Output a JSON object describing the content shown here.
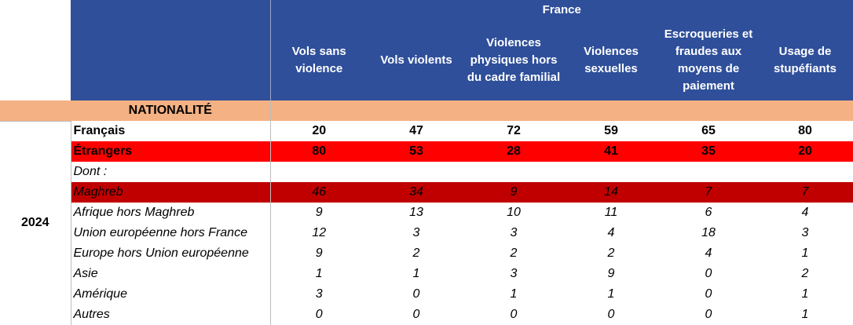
{
  "header": {
    "group_title": "France",
    "columns": [
      "Vols sans violence",
      "Vols violents",
      "Violences physiques hors du cadre familial",
      "Violences sexuelles",
      "Escroqueries et fraudes aux moyens de paiement",
      "Usage de stupéfiants"
    ]
  },
  "section_label": "NATIONALITÉ",
  "year": "2024",
  "rows": [
    {
      "label": "Français",
      "values": [
        "20",
        "47",
        "72",
        "59",
        "65",
        "80"
      ],
      "style": "bold"
    },
    {
      "label": "Étrangers",
      "values": [
        "80",
        "53",
        "28",
        "41",
        "35",
        "20"
      ],
      "style": "bold red"
    },
    {
      "label": "Dont :",
      "values": [
        "",
        "",
        "",
        "",
        "",
        ""
      ],
      "style": "ital"
    },
    {
      "label": "Maghreb",
      "values": [
        "46",
        "34",
        "9",
        "14",
        "7",
        "7"
      ],
      "style": "ital dark"
    },
    {
      "label": "Afrique hors Maghreb",
      "values": [
        "9",
        "13",
        "10",
        "11",
        "6",
        "4"
      ],
      "style": "ital"
    },
    {
      "label": "Union européenne hors France",
      "values": [
        "12",
        "3",
        "3",
        "4",
        "18",
        "3"
      ],
      "style": "ital"
    },
    {
      "label": "Europe hors Union européenne",
      "values": [
        "9",
        "2",
        "2",
        "2",
        "4",
        "1"
      ],
      "style": "ital"
    },
    {
      "label": "Asie",
      "values": [
        "1",
        "1",
        "3",
        "9",
        "0",
        "2"
      ],
      "style": "ital"
    },
    {
      "label": "Amérique",
      "values": [
        "3",
        "0",
        "1",
        "1",
        "0",
        "1"
      ],
      "style": "ital"
    },
    {
      "label": "Autres",
      "values": [
        "0",
        "0",
        "0",
        "0",
        "0",
        "1"
      ],
      "style": "ital"
    }
  ]
}
